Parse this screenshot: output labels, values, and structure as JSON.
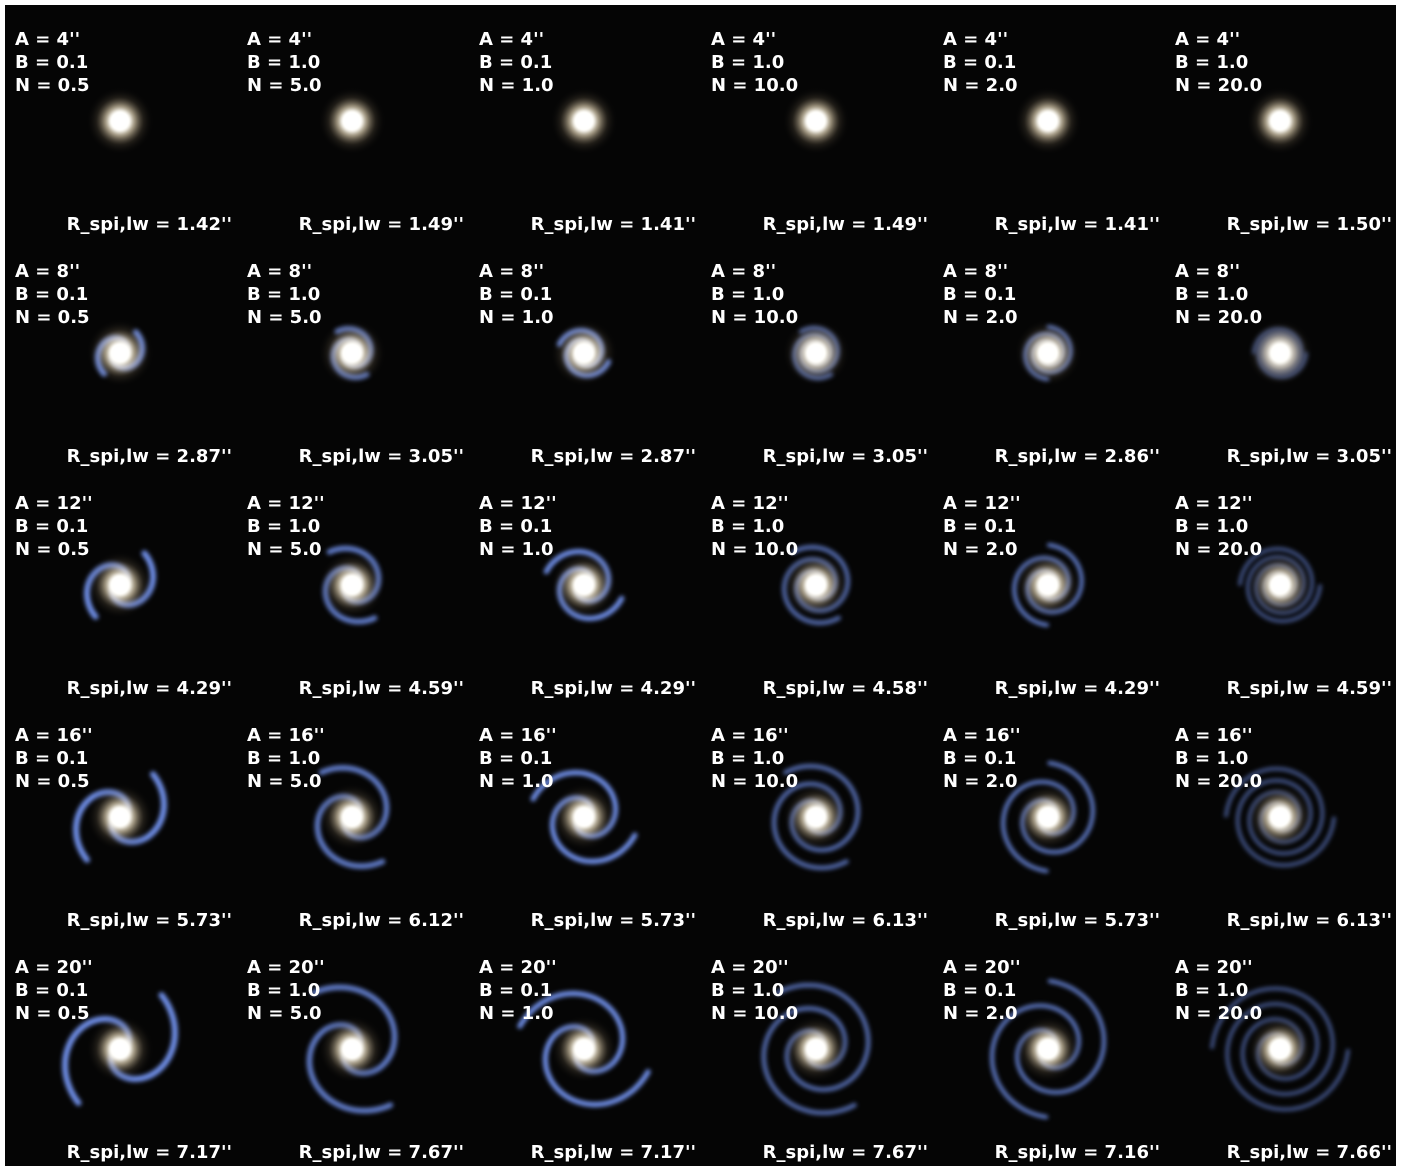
{
  "panels": [
    {
      "a": "A = 4''",
      "b": "B = 0.1",
      "n": "N = 0.5",
      "r": "R_spi,lw = 1.42''"
    },
    {
      "a": "A = 4''",
      "b": "B = 1.0",
      "n": "N = 5.0",
      "r": "R_spi,lw = 1.49''"
    },
    {
      "a": "A = 4''",
      "b": "B = 0.1",
      "n": "N = 1.0",
      "r": "R_spi,lw = 1.41''"
    },
    {
      "a": "A = 4''",
      "b": "B = 1.0",
      "n": "N = 10.0",
      "r": "R_spi,lw = 1.49''"
    },
    {
      "a": "A = 4''",
      "b": "B = 0.1",
      "n": "N = 2.0",
      "r": "R_spi,lw = 1.41''"
    },
    {
      "a": "A = 4''",
      "b": "B = 1.0",
      "n": "N = 20.0",
      "r": "R_spi,lw = 1.50''"
    },
    {
      "a": "A = 8''",
      "b": "B = 0.1",
      "n": "N = 0.5",
      "r": "R_spi,lw = 2.87''"
    },
    {
      "a": "A = 8''",
      "b": "B = 1.0",
      "n": "N = 5.0",
      "r": "R_spi,lw = 3.05''"
    },
    {
      "a": "A = 8''",
      "b": "B = 0.1",
      "n": "N = 1.0",
      "r": "R_spi,lw = 2.87''"
    },
    {
      "a": "A = 8''",
      "b": "B = 1.0",
      "n": "N = 10.0",
      "r": "R_spi,lw = 3.05''"
    },
    {
      "a": "A = 8''",
      "b": "B = 0.1",
      "n": "N = 2.0",
      "r": "R_spi,lw = 2.86''"
    },
    {
      "a": "A = 8''",
      "b": "B = 1.0",
      "n": "N = 20.0",
      "r": "R_spi,lw = 3.05''"
    },
    {
      "a": "A = 12''",
      "b": "B = 0.1",
      "n": "N = 0.5",
      "r": "R_spi,lw = 4.29''"
    },
    {
      "a": "A = 12''",
      "b": "B = 1.0",
      "n": "N = 5.0",
      "r": "R_spi,lw = 4.59''"
    },
    {
      "a": "A = 12''",
      "b": "B = 0.1",
      "n": "N = 1.0",
      "r": "R_spi,lw = 4.29''"
    },
    {
      "a": "A = 12''",
      "b": "B = 1.0",
      "n": "N = 10.0",
      "r": "R_spi,lw = 4.58''"
    },
    {
      "a": "A = 12''",
      "b": "B = 0.1",
      "n": "N = 2.0",
      "r": "R_spi,lw = 4.29''"
    },
    {
      "a": "A = 12''",
      "b": "B = 1.0",
      "n": "N = 20.0",
      "r": "R_spi,lw = 4.59''"
    },
    {
      "a": "A = 16''",
      "b": "B = 0.1",
      "n": "N = 0.5",
      "r": "R_spi,lw = 5.73''"
    },
    {
      "a": "A = 16''",
      "b": "B = 1.0",
      "n": "N = 5.0",
      "r": "R_spi,lw = 6.12''"
    },
    {
      "a": "A = 16''",
      "b": "B = 0.1",
      "n": "N = 1.0",
      "r": "R_spi,lw = 5.73''"
    },
    {
      "a": "A = 16''",
      "b": "B = 1.0",
      "n": "N = 10.0",
      "r": "R_spi,lw = 6.13''"
    },
    {
      "a": "A = 16''",
      "b": "B = 0.1",
      "n": "N = 2.0",
      "r": "R_spi,lw = 5.73''"
    },
    {
      "a": "A = 16''",
      "b": "B = 1.0",
      "n": "N = 20.0",
      "r": "R_spi,lw = 6.13''"
    },
    {
      "a": "A = 20''",
      "b": "B = 0.1",
      "n": "N = 0.5",
      "r": "R_spi,lw = 7.17''"
    },
    {
      "a": "A = 20''",
      "b": "B = 1.0",
      "n": "N = 5.0",
      "r": "R_spi,lw = 7.67''"
    },
    {
      "a": "A = 20''",
      "b": "B = 0.1",
      "n": "N = 1.0",
      "r": "R_spi,lw = 7.17''"
    },
    {
      "a": "A = 20''",
      "b": "B = 1.0",
      "n": "N = 10.0",
      "r": "R_spi,lw = 7.67''"
    },
    {
      "a": "A = 20''",
      "b": "B = 0.1",
      "n": "N = 2.0",
      "r": "R_spi,lw = 7.16''"
    },
    {
      "a": "A = 20''",
      "b": "B = 1.0",
      "n": "N = 20.0",
      "r": "R_spi,lw = 7.66''"
    }
  ]
}
